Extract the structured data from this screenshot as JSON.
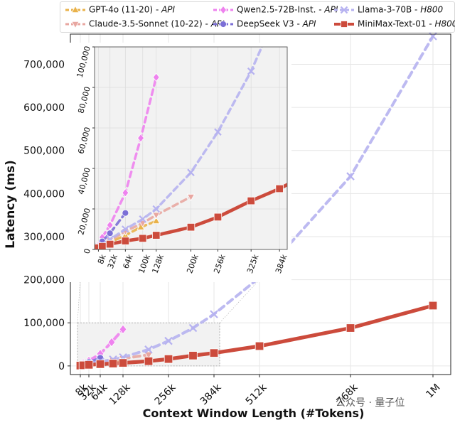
{
  "chart_data": [
    {
      "type": "line",
      "xlabel": "Context Window Length (#Tokens)",
      "ylabel": "Latency (ms)",
      "x_tick_labels": [
        "8k",
        "32k",
        "64k",
        "128k",
        "256k",
        "384k",
        "512k",
        "768k",
        "1M"
      ],
      "x_tick_values": [
        8,
        32,
        64,
        128,
        256,
        384,
        512,
        768,
        1000
      ],
      "y_tick_labels": [
        "0",
        "100,000",
        "200,000",
        "300,000",
        "400,000",
        "500,000",
        "600,000",
        "700,000"
      ],
      "y_tick_values": [
        0,
        100000,
        200000,
        300000,
        400000,
        500000,
        600000,
        700000
      ],
      "xlim": [
        -20,
        1050
      ],
      "ylim": [
        -20000,
        770000
      ],
      "grid": true,
      "legend_position": "top",
      "series": [
        {
          "name": "GPT-4o (11-20)",
          "suffix": "API",
          "color": "#e9b24a",
          "marker": "triangle-up",
          "x": [
            8,
            16,
            32,
            64,
            96,
            128
          ],
          "y": [
            900,
            1800,
            3500,
            7000,
            11000,
            14000
          ]
        },
        {
          "name": "Claude-3.5-Sonnet (10-22)",
          "suffix": "API",
          "color": "#e8a7a1",
          "marker": "triangle-down",
          "x": [
            8,
            16,
            32,
            64,
            100,
            128,
            200
          ],
          "y": [
            1000,
            2200,
            4500,
            9000,
            13000,
            17000,
            26000
          ]
        },
        {
          "name": "Qwen2.5-72B-Inst.",
          "suffix": "API",
          "color": "#ee82ee",
          "marker": "diamond",
          "x": [
            8,
            16,
            32,
            64,
            96,
            128
          ],
          "y": [
            2000,
            6000,
            12000,
            28000,
            55000,
            85000
          ]
        },
        {
          "name": "DeepSeek V3",
          "suffix": "API",
          "color": "#7b6fd6",
          "marker": "circle",
          "x": [
            8,
            16,
            32,
            64
          ],
          "y": [
            1500,
            4000,
            8000,
            18000
          ]
        },
        {
          "name": "Llama-3-70B",
          "suffix": "H800",
          "color": "#b6b2f0",
          "marker": "x",
          "x": [
            8,
            16,
            32,
            64,
            100,
            128,
            200,
            256,
            325,
            384,
            512,
            768,
            1000
          ],
          "y": [
            1200,
            2500,
            5000,
            10000,
            15000,
            20000,
            38000,
            58000,
            88000,
            120000,
            205000,
            440000,
            765000
          ]
        },
        {
          "name": "MiniMax-Text-01",
          "suffix": "H800",
          "color": "#cc4b3c",
          "marker": "square",
          "x": [
            8,
            16,
            32,
            64,
            100,
            128,
            200,
            256,
            325,
            384,
            512,
            768,
            1000
          ],
          "y": [
            800,
            1500,
            2600,
            4200,
            5500,
            7000,
            11000,
            16000,
            24000,
            30000,
            46000,
            88000,
            140000
          ]
        }
      ]
    },
    {
      "type": "line",
      "role": "inset-zoom",
      "x_tick_labels": [
        "8k",
        "32k",
        "64k",
        "100k",
        "128k",
        "200k",
        "256k",
        "325k",
        "384k"
      ],
      "x_tick_values": [
        8,
        32,
        64,
        100,
        128,
        200,
        256,
        325,
        384
      ],
      "y_tick_labels": [
        "0",
        "20,000",
        "40,000",
        "60,000",
        "80,000",
        "100,000"
      ],
      "y_tick_values": [
        0,
        20000,
        40000,
        60000,
        80000,
        100000
      ],
      "xlim": [
        0,
        400
      ],
      "ylim": [
        0,
        100000
      ],
      "grid": true,
      "series_ref": "same-as-main"
    }
  ],
  "legend": {
    "items": [
      {
        "name": "GPT-4o (11-20)",
        "suffix": "API"
      },
      {
        "name": "Claude-3.5-Sonnet (10-22)",
        "suffix": "API"
      },
      {
        "name": "Qwen2.5-72B-Inst.",
        "suffix": "API"
      },
      {
        "name": "DeepSeek V3",
        "suffix": "API"
      },
      {
        "name": "Llama-3-70B",
        "suffix": "H800"
      },
      {
        "name": "MiniMax-Text-01",
        "suffix": "H800"
      }
    ]
  },
  "watermark": {
    "text": "公众号 · 量子位"
  }
}
